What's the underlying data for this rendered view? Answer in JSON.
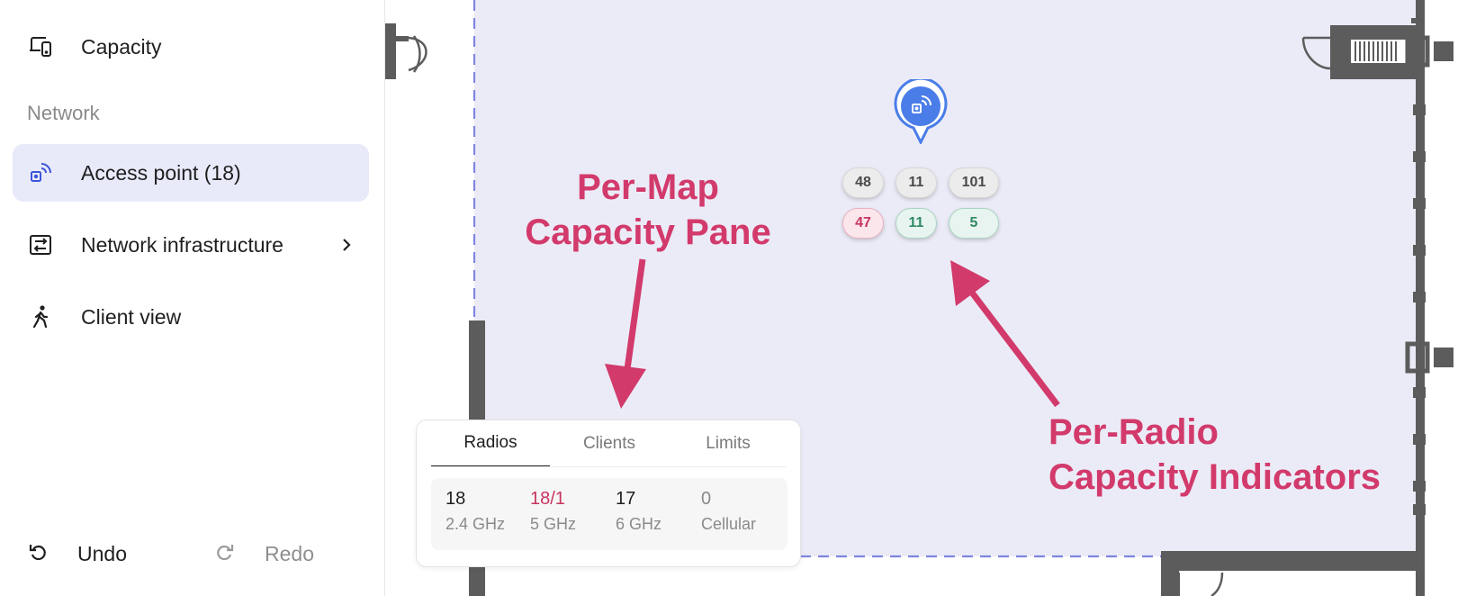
{
  "sidebar": {
    "capacity_label": "Capacity",
    "section_network": "Network",
    "items": [
      {
        "id": "access-point",
        "label": "Access point (18)",
        "icon": "access-point-icon",
        "active": true
      },
      {
        "id": "network-infrastructure",
        "label": "Network infrastructure",
        "icon": "network-infrastructure-icon",
        "has_submenu": true
      },
      {
        "id": "client-view",
        "label": "Client view",
        "icon": "walking-person-icon"
      }
    ],
    "undo_label": "Undo",
    "redo_label": "Redo"
  },
  "map": {
    "access_point_icon": "access-point-pin-icon",
    "radio_chips": {
      "top": [
        "48",
        "11",
        "101"
      ],
      "bottom": [
        "47",
        "11",
        "5"
      ],
      "bottom_status": [
        "over",
        "ok",
        "ok"
      ]
    }
  },
  "annotations": {
    "pane_line1": "Per-Map",
    "pane_line2": "Capacity Pane",
    "radio_line1": "Per-Radio",
    "radio_line2": "Capacity Indicators"
  },
  "capacity_pane": {
    "tabs": [
      {
        "label": "Radios",
        "active": true
      },
      {
        "label": "Clients",
        "active": false
      },
      {
        "label": "Limits",
        "active": false
      }
    ],
    "stats": [
      {
        "value": "18",
        "label": "2.4 GHz",
        "status": "normal"
      },
      {
        "value": "18/1",
        "label": "5 GHz",
        "status": "alert"
      },
      {
        "value": "17",
        "label": "6 GHz",
        "status": "normal"
      },
      {
        "value": "0",
        "label": "Cellular",
        "status": "muted"
      }
    ]
  },
  "colors": {
    "accent": "#d23a6b",
    "nav_active_bg": "#e8eafa",
    "map_area": "#ebebf7",
    "boundary_dash": "#7f86e0",
    "wall": "#5c5c5c",
    "pin": "#4a7de8"
  }
}
